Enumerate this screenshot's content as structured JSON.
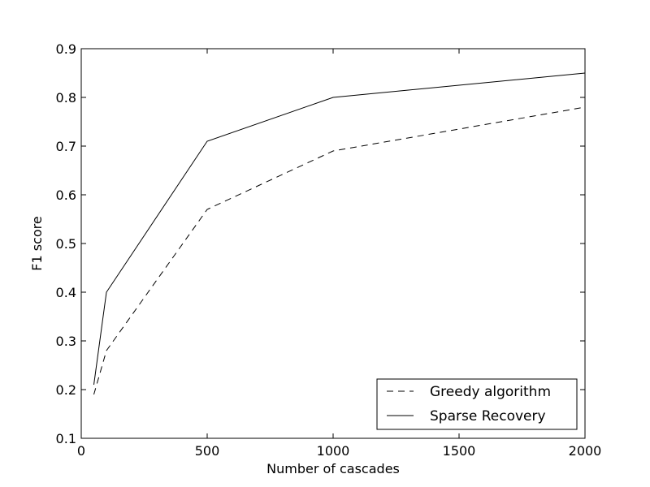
{
  "figure": {
    "background": "#ffffff",
    "foreground": "#000000"
  },
  "chart_data": {
    "type": "line",
    "title": "",
    "xlabel": "Number of cascades",
    "ylabel": "F1 score",
    "xlim": [
      0,
      2000
    ],
    "ylim": [
      0.1,
      0.9
    ],
    "x_ticks": [
      0,
      500,
      1000,
      1500,
      2000
    ],
    "x_tick_labels": [
      "0",
      "500",
      "1000",
      "1500",
      "2000"
    ],
    "y_ticks": [
      0.1,
      0.2,
      0.3,
      0.4,
      0.5,
      0.6,
      0.7,
      0.8,
      0.9
    ],
    "y_tick_labels": [
      "0.1",
      "0.2",
      "0.3",
      "0.4",
      "0.5",
      "0.6",
      "0.7",
      "0.8",
      "0.9"
    ],
    "grid": false,
    "legend_position": "lower right",
    "series": [
      {
        "name": "Greedy algorithm",
        "style": "dashed",
        "color": "#000000",
        "x": [
          50,
          100,
          500,
          1000,
          2000
        ],
        "y": [
          0.19,
          0.28,
          0.57,
          0.69,
          0.78
        ]
      },
      {
        "name": "Sparse Recovery",
        "style": "solid",
        "color": "#000000",
        "x": [
          50,
          100,
          500,
          1000,
          2000
        ],
        "y": [
          0.21,
          0.4,
          0.71,
          0.8,
          0.85
        ]
      }
    ]
  }
}
